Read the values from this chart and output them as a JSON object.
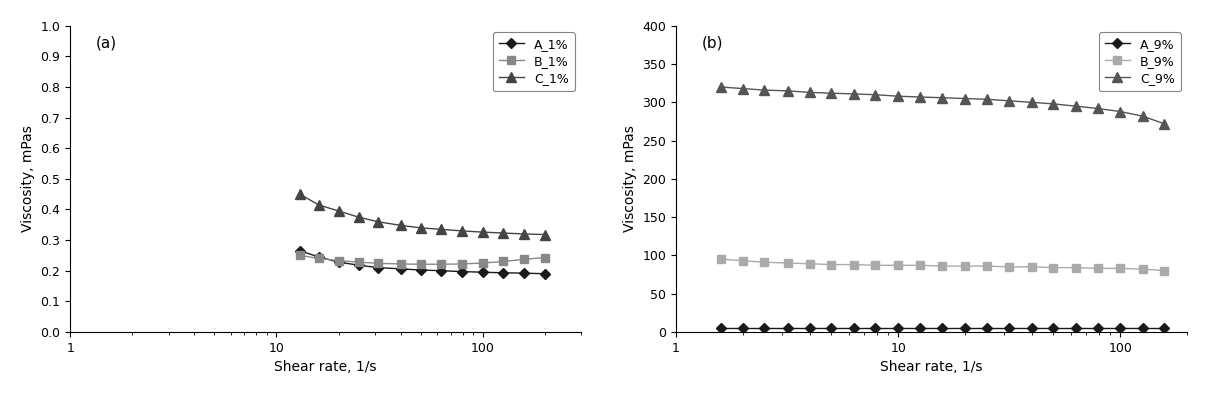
{
  "panel_a": {
    "label": "(a)",
    "xlabel": "Shear rate, 1/s",
    "ylabel": "Viscosity, mPas",
    "xlim": [
      1,
      300
    ],
    "ylim": [
      0.0,
      1.0
    ],
    "yticks": [
      0.0,
      0.1,
      0.2,
      0.3,
      0.4,
      0.5,
      0.6,
      0.7,
      0.8,
      0.9,
      1.0
    ],
    "xticks": [
      1,
      10,
      100
    ],
    "series": [
      {
        "label": "A_1%",
        "color": "#1a1a1a",
        "marker": "D",
        "markersize": 5,
        "x": [
          13,
          16,
          20,
          25,
          31,
          40,
          50,
          63,
          79,
          100,
          126,
          158,
          200
        ],
        "y": [
          0.265,
          0.245,
          0.228,
          0.218,
          0.21,
          0.206,
          0.202,
          0.2,
          0.197,
          0.195,
          0.193,
          0.192,
          0.19
        ]
      },
      {
        "label": "B_1%",
        "color": "#888888",
        "marker": "s",
        "markersize": 6,
        "x": [
          13,
          16,
          20,
          25,
          31,
          40,
          50,
          63,
          79,
          100,
          126,
          158,
          200
        ],
        "y": [
          0.25,
          0.24,
          0.233,
          0.228,
          0.224,
          0.222,
          0.221,
          0.221,
          0.222,
          0.225,
          0.23,
          0.237,
          0.243
        ]
      },
      {
        "label": "C_1%",
        "color": "#444444",
        "marker": "^",
        "markersize": 7,
        "x": [
          13,
          16,
          20,
          25,
          31,
          40,
          50,
          63,
          79,
          100,
          126,
          158,
          200
        ],
        "y": [
          0.45,
          0.415,
          0.395,
          0.375,
          0.36,
          0.348,
          0.34,
          0.335,
          0.33,
          0.326,
          0.323,
          0.32,
          0.318
        ]
      }
    ]
  },
  "panel_b": {
    "label": "(b)",
    "xlabel": "Shear rate, 1/s",
    "ylabel": "Viscosity, mPas",
    "xlim": [
      1,
      200
    ],
    "ylim": [
      0,
      400
    ],
    "yticks": [
      0,
      50,
      100,
      150,
      200,
      250,
      300,
      350,
      400
    ],
    "xticks": [
      1,
      10,
      100
    ],
    "series": [
      {
        "label": "A_9%",
        "color": "#1a1a1a",
        "marker": "D",
        "markersize": 5,
        "x": [
          1.6,
          2.0,
          2.5,
          3.2,
          4.0,
          5.0,
          6.3,
          7.9,
          10,
          12.6,
          15.8,
          20,
          25,
          31.6,
          40,
          50,
          63,
          79,
          100,
          126,
          158
        ],
        "y": [
          5,
          5,
          5,
          5,
          5,
          5,
          5,
          5,
          5,
          5,
          5,
          5,
          5,
          5,
          5,
          5,
          5,
          5,
          5,
          5,
          5
        ]
      },
      {
        "label": "B_9%",
        "color": "#aaaaaa",
        "marker": "s",
        "markersize": 6,
        "x": [
          1.6,
          2.0,
          2.5,
          3.2,
          4.0,
          5.0,
          6.3,
          7.9,
          10,
          12.6,
          15.8,
          20,
          25,
          31.6,
          40,
          50,
          63,
          79,
          100,
          126,
          158
        ],
        "y": [
          95,
          93,
          91,
          90,
          89,
          88,
          88,
          87,
          87,
          87,
          86,
          86,
          86,
          85,
          85,
          84,
          84,
          83,
          83,
          82,
          80
        ]
      },
      {
        "label": "C_9%",
        "color": "#555555",
        "marker": "^",
        "markersize": 7,
        "x": [
          1.6,
          2.0,
          2.5,
          3.2,
          4.0,
          5.0,
          6.3,
          7.9,
          10,
          12.6,
          15.8,
          20,
          25,
          31.6,
          40,
          50,
          63,
          79,
          100,
          126,
          158
        ],
        "y": [
          320,
          318,
          316,
          315,
          313,
          312,
          311,
          310,
          308,
          307,
          306,
          305,
          304,
          302,
          300,
          298,
          295,
          292,
          288,
          282,
          272
        ]
      }
    ]
  },
  "background_color": "#ffffff",
  "line_width": 1.0,
  "label_fontsize": 10,
  "tick_fontsize": 9,
  "legend_fontsize": 9,
  "panel_label_fontsize": 11
}
